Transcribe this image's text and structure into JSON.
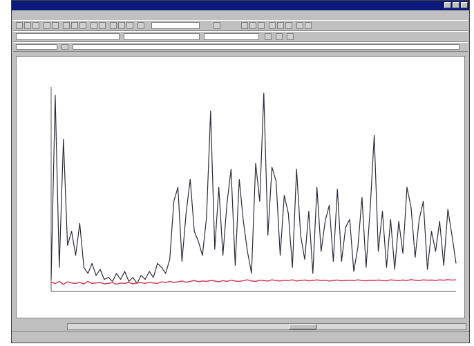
{
  "window": {
    "title": ""
  },
  "menubar": {
    "items": []
  },
  "chart_data": {
    "type": "line",
    "title": "",
    "xlabel": "",
    "ylabel": "",
    "ylim": [
      0,
      1000
    ],
    "x": [
      0,
      1,
      2,
      3,
      4,
      5,
      6,
      7,
      8,
      9,
      10,
      11,
      12,
      13,
      14,
      15,
      16,
      17,
      18,
      19,
      20,
      21,
      22,
      23,
      24,
      25,
      26,
      27,
      28,
      29,
      30,
      31,
      32,
      33,
      34,
      35,
      36,
      37,
      38,
      39,
      40,
      41,
      42,
      43,
      44,
      45,
      46,
      47,
      48,
      49,
      50,
      51,
      52,
      53,
      54,
      55,
      56,
      57,
      58,
      59,
      60,
      61,
      62,
      63,
      64,
      65,
      66,
      67,
      68,
      69,
      70,
      71,
      72,
      73,
      74,
      75,
      76,
      77,
      78,
      79,
      80,
      81,
      82,
      83,
      84,
      85,
      86,
      87,
      88,
      89,
      90,
      91,
      92,
      93,
      94,
      95,
      96,
      97,
      98,
      99
    ],
    "series": [
      {
        "values": [
          60,
          980,
          120,
          760,
          230,
          300,
          180,
          340,
          120,
          90,
          140,
          80,
          110,
          60,
          70,
          50,
          90,
          60,
          100,
          50,
          70,
          40,
          80,
          60,
          100,
          70,
          140,
          120,
          90,
          160,
          450,
          520,
          150,
          390,
          560,
          300,
          250,
          180,
          370,
          900,
          210,
          520,
          180,
          440,
          610,
          130,
          560,
          350,
          200,
          90,
          640,
          450,
          990,
          280,
          620,
          550,
          180,
          480,
          390,
          120,
          610,
          280,
          160,
          400,
          90,
          520,
          200,
          350,
          430,
          150,
          510,
          150,
          320,
          360,
          100,
          220,
          470,
          120,
          410,
          780,
          200,
          400,
          120,
          360,
          110,
          350,
          190,
          520,
          420,
          170,
          360,
          450,
          110,
          300,
          200,
          350,
          130,
          410,
          280,
          140
        ]
      },
      {
        "values": [
          45,
          40,
          50,
          35,
          48,
          42,
          40,
          45,
          38,
          50,
          40,
          42,
          45,
          38,
          40,
          44,
          36,
          42,
          40,
          45,
          38,
          42,
          44,
          40,
          46,
          42,
          40,
          48,
          44,
          50,
          45,
          48,
          52,
          46,
          50,
          55,
          48,
          52,
          50,
          55,
          52,
          48,
          54,
          50,
          56,
          52,
          50,
          54,
          58,
          52,
          50,
          56,
          54,
          52,
          58,
          55,
          52,
          56,
          54,
          58,
          52,
          55,
          57,
          53,
          55,
          58,
          54,
          56,
          52,
          55,
          57,
          53,
          55,
          56,
          54,
          58,
          55,
          53,
          56,
          54,
          57,
          55,
          53,
          58,
          56,
          54,
          57,
          55,
          59,
          56,
          54,
          58,
          56,
          57,
          55,
          58,
          56,
          59,
          57,
          58
        ]
      }
    ],
    "colors": [
      "#2a2a3a",
      "#d83a5a"
    ],
    "grid": false
  }
}
